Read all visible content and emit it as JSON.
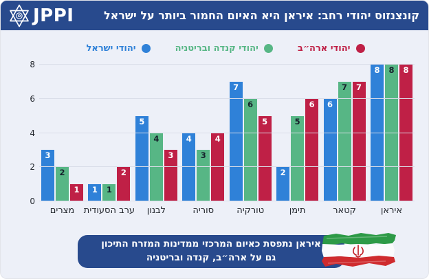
{
  "header": {
    "logo_text": "JPPI",
    "title": "קונצנזוס יהודי רחב: איראן היא האיום החמור ביותר על ישראל"
  },
  "legend": [
    {
      "label": "יהודי ארה״ב",
      "color": "#bf2046"
    },
    {
      "label": "יהודי קנדה ובריטניה",
      "color": "#57b685"
    },
    {
      "label": "יהודי ישראל",
      "color": "#2f81d8"
    }
  ],
  "chart_data": {
    "type": "bar",
    "direction": "rtl",
    "title": "קונצנזוס יהודי רחב: איראן היא האיום החמור ביותר על ישראל",
    "categories": [
      "מצרים",
      "ערב הסעודית",
      "לבנון",
      "סוריה",
      "טורקיה",
      "תימן",
      "קטאר",
      "איראן"
    ],
    "series": [
      {
        "name": "יהודי ישראל",
        "color": "#2f81d8",
        "label_color": "#ffffff",
        "values": [
          3,
          1,
          5,
          4,
          7,
          2,
          6,
          8
        ]
      },
      {
        "name": "יהודי קנדה ובריטניה",
        "color": "#57b685",
        "label_color": "#15202b",
        "values": [
          2,
          1,
          4,
          3,
          6,
          5,
          7,
          8
        ]
      },
      {
        "name": "יהודי ארה״ב",
        "color": "#bf2046",
        "label_color": "#ffffff",
        "values": [
          1,
          2,
          3,
          4,
          5,
          6,
          7,
          8
        ]
      }
    ],
    "ylim": [
      0,
      8
    ],
    "yticks": [
      0,
      2,
      4,
      6,
      8
    ],
    "grid": true,
    "legend_position": "top"
  },
  "annotation": {
    "line1": "איראן נתפסת כאיום המרכזי ממדינות המזרח התיכון",
    "line2": "גם על ארה״ב, קנדה ובריטניה",
    "flag_icon": "iran-flag"
  },
  "colors": {
    "header_bg": "#284a8d",
    "page_bg": "#edf0f8",
    "gridline": "#d9dde8",
    "axis_text": "#23272e"
  }
}
